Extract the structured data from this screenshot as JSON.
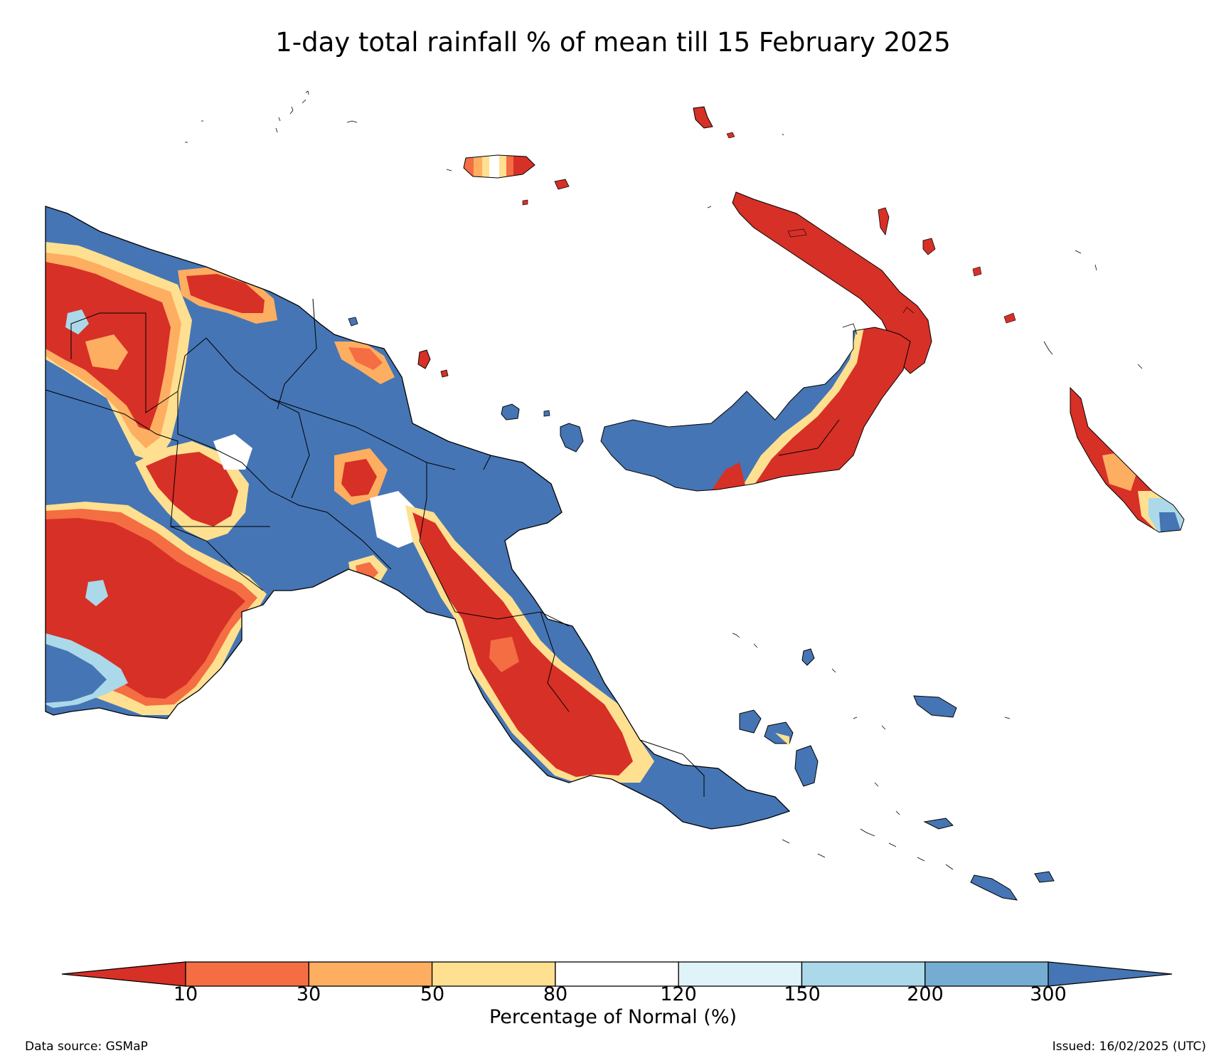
{
  "title": "1-day total rainfall % of mean till 15 February 2025",
  "colorbar": {
    "label": "Percentage of Normal (%)",
    "ticks": [
      "10",
      "30",
      "50",
      "80",
      "120",
      "150",
      "200",
      "300"
    ],
    "colors": [
      "#d73027",
      "#f46d43",
      "#fdae61",
      "#fee090",
      "#ffffff",
      "#e0f3f8",
      "#abd9e9",
      "#74add1",
      "#4575b4"
    ],
    "extend": "both"
  },
  "footer": {
    "source": "Data source: GSMaP",
    "issued": "Issued: 16/02/2025 (UTC)"
  },
  "map": {
    "region": "Papua New Guinea",
    "palette": {
      "red": "#d73027",
      "orange": "#f46d43",
      "lightorange": "#fdae61",
      "yellow": "#fee090",
      "white": "#ffffff",
      "paleblue": "#e0f3f8",
      "lightblue": "#abd9e9",
      "midblue": "#74add1",
      "blue": "#4575b4"
    }
  }
}
